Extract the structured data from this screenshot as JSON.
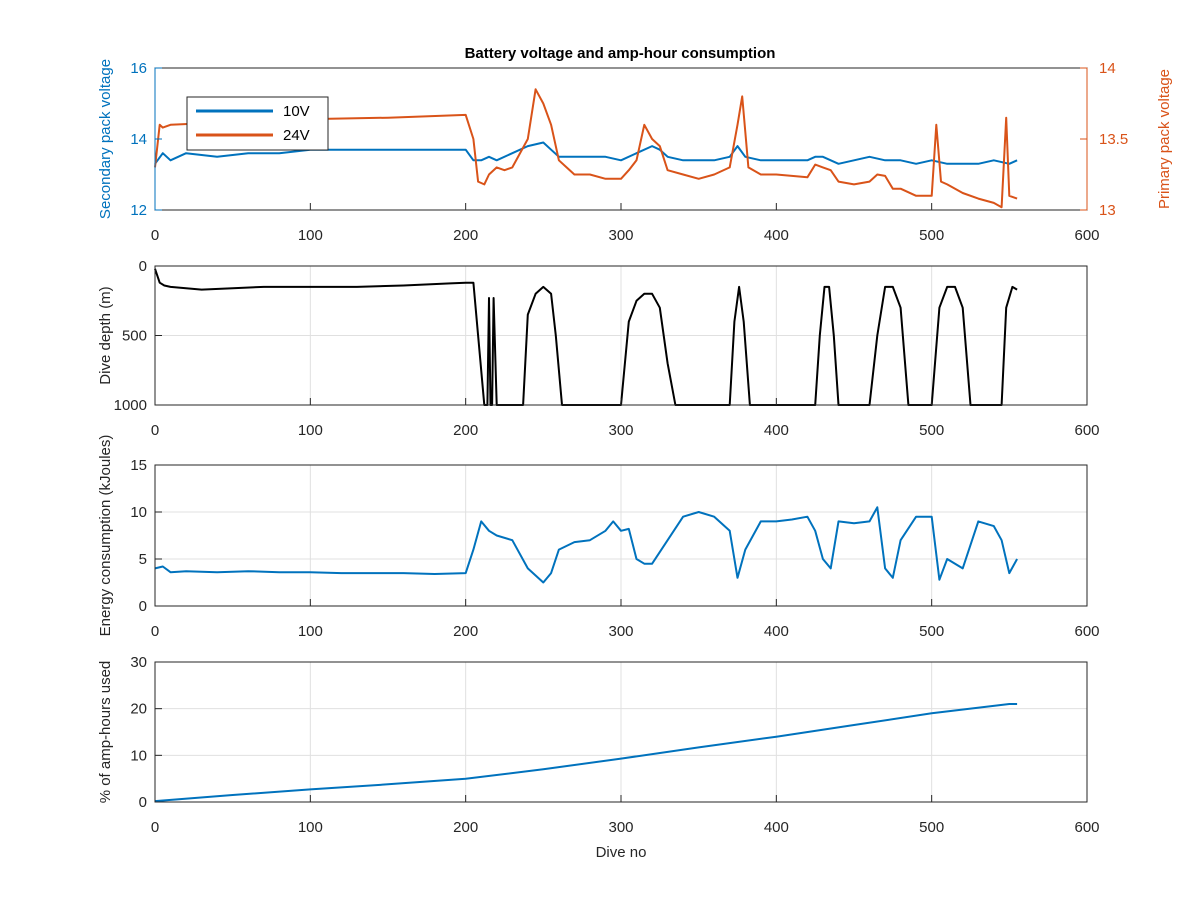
{
  "figure_title": "Battery voltage and amp-hour consumption",
  "colors": {
    "blue": "#0072bd",
    "orange": "#d95319",
    "black": "#000000",
    "grid": "#e0e0e0"
  },
  "chart_data": [
    {
      "type": "line",
      "title": "Battery voltage and amp-hour consumption",
      "xlabel": "",
      "xlim": [
        0,
        600
      ],
      "x_ticks": [
        "0",
        "100",
        "200",
        "300",
        "400",
        "500",
        "600"
      ],
      "ylabel_left": "Secondary pack voltage",
      "ylim_left": [
        12,
        16
      ],
      "y_ticks_left": [
        "12",
        "14",
        "16"
      ],
      "ylabel_right": "Primary pack voltage",
      "ylim_right": [
        13,
        14
      ],
      "y_ticks_right": [
        "13",
        "13.5",
        "14"
      ],
      "grid": false,
      "legend": {
        "placement": "top-left",
        "entries": [
          "10V",
          "24V"
        ]
      },
      "series": [
        {
          "name": "10V",
          "axis": "left",
          "color": "#0072bd",
          "x": [
            0,
            5,
            10,
            20,
            40,
            60,
            80,
            100,
            120,
            140,
            160,
            180,
            200,
            205,
            210,
            215,
            220,
            230,
            240,
            250,
            255,
            260,
            270,
            280,
            290,
            300,
            310,
            320,
            325,
            330,
            340,
            350,
            360,
            370,
            375,
            380,
            390,
            400,
            410,
            420,
            425,
            430,
            440,
            450,
            460,
            470,
            480,
            490,
            500,
            510,
            520,
            530,
            540,
            550,
            555
          ],
          "y": [
            13.3,
            13.6,
            13.4,
            13.6,
            13.5,
            13.6,
            13.6,
            13.7,
            13.7,
            13.7,
            13.7,
            13.7,
            13.7,
            13.4,
            13.4,
            13.5,
            13.4,
            13.6,
            13.8,
            13.9,
            13.7,
            13.5,
            13.5,
            13.5,
            13.5,
            13.4,
            13.6,
            13.8,
            13.7,
            13.5,
            13.4,
            13.4,
            13.4,
            13.5,
            13.8,
            13.5,
            13.4,
            13.4,
            13.4,
            13.4,
            13.5,
            13.5,
            13.3,
            13.4,
            13.5,
            13.4,
            13.4,
            13.3,
            13.4,
            13.3,
            13.3,
            13.3,
            13.4,
            13.3,
            13.4
          ]
        },
        {
          "name": "24V",
          "axis": "right",
          "color": "#d95319",
          "x": [
            0,
            3,
            5,
            10,
            50,
            60,
            100,
            150,
            200,
            205,
            208,
            212,
            215,
            220,
            225,
            230,
            240,
            245,
            250,
            255,
            260,
            265,
            270,
            280,
            290,
            300,
            305,
            310,
            315,
            320,
            325,
            330,
            340,
            350,
            360,
            370,
            375,
            378,
            382,
            390,
            400,
            410,
            420,
            425,
            430,
            435,
            440,
            450,
            460,
            465,
            470,
            475,
            480,
            490,
            500,
            503,
            506,
            510,
            520,
            530,
            540,
            545,
            548,
            550,
            555
          ],
          "y": [
            13.3,
            13.6,
            13.58,
            13.6,
            13.62,
            13.64,
            13.64,
            13.65,
            13.67,
            13.5,
            13.2,
            13.18,
            13.25,
            13.3,
            13.28,
            13.3,
            13.5,
            13.85,
            13.75,
            13.6,
            13.35,
            13.3,
            13.25,
            13.25,
            13.22,
            13.22,
            13.28,
            13.35,
            13.6,
            13.5,
            13.45,
            13.28,
            13.25,
            13.22,
            13.25,
            13.3,
            13.6,
            13.8,
            13.3,
            13.25,
            13.25,
            13.24,
            13.23,
            13.32,
            13.3,
            13.28,
            13.2,
            13.18,
            13.2,
            13.25,
            13.24,
            13.15,
            13.15,
            13.1,
            13.1,
            13.6,
            13.2,
            13.18,
            13.12,
            13.08,
            13.05,
            13.02,
            13.65,
            13.1,
            13.08
          ]
        }
      ]
    },
    {
      "type": "line",
      "xlabel": "",
      "xlim": [
        0,
        600
      ],
      "x_ticks": [
        "0",
        "100",
        "200",
        "300",
        "400",
        "500",
        "600"
      ],
      "ylabel": "Dive depth (m)",
      "ylim": [
        0,
        1000
      ],
      "y_reversed": true,
      "y_ticks": [
        "0",
        "500",
        "1000"
      ],
      "grid": true,
      "series": [
        {
          "color": "#000000",
          "x": [
            0,
            3,
            6,
            10,
            30,
            50,
            70,
            100,
            130,
            160,
            190,
            200,
            205,
            208,
            212,
            214,
            215,
            216,
            217,
            218,
            220,
            230,
            237,
            240,
            245,
            250,
            255,
            258,
            262,
            300,
            305,
            310,
            315,
            320,
            325,
            330,
            335,
            340,
            370,
            373,
            376,
            379,
            383,
            400,
            425,
            428,
            431,
            434,
            437,
            440,
            445,
            450,
            460,
            465,
            470,
            475,
            480,
            485,
            490,
            500,
            505,
            510,
            515,
            520,
            525,
            540,
            545,
            548,
            552,
            555
          ],
          "y": [
            20,
            120,
            140,
            150,
            170,
            160,
            150,
            150,
            150,
            140,
            125,
            120,
            120,
            500,
            1000,
            1000,
            230,
            1000,
            1000,
            230,
            1000,
            1000,
            1000,
            350,
            200,
            150,
            200,
            500,
            1000,
            1000,
            400,
            250,
            200,
            200,
            300,
            700,
            1000,
            1000,
            1000,
            400,
            150,
            400,
            1000,
            1000,
            1000,
            500,
            150,
            150,
            500,
            1000,
            1000,
            1000,
            1000,
            500,
            150,
            150,
            300,
            1000,
            1000,
            1000,
            300,
            150,
            150,
            300,
            1000,
            1000,
            1000,
            300,
            150,
            170
          ]
        }
      ]
    },
    {
      "type": "line",
      "xlabel": "",
      "xlim": [
        0,
        600
      ],
      "x_ticks": [
        "0",
        "100",
        "200",
        "300",
        "400",
        "500",
        "600"
      ],
      "ylabel": "Energy consumption (kJoules)",
      "ylim": [
        0,
        15
      ],
      "y_ticks": [
        "0",
        "5",
        "10",
        "15"
      ],
      "grid": true,
      "series": [
        {
          "color": "#0072bd",
          "x": [
            0,
            5,
            10,
            20,
            40,
            60,
            80,
            100,
            120,
            140,
            160,
            180,
            200,
            205,
            210,
            215,
            220,
            230,
            240,
            250,
            255,
            260,
            270,
            280,
            290,
            295,
            300,
            305,
            310,
            315,
            320,
            330,
            340,
            350,
            360,
            370,
            375,
            380,
            390,
            400,
            410,
            420,
            425,
            430,
            435,
            440,
            450,
            460,
            465,
            470,
            475,
            480,
            490,
            500,
            505,
            510,
            520,
            530,
            540,
            545,
            550,
            555
          ],
          "y": [
            4.0,
            4.2,
            3.6,
            3.7,
            3.6,
            3.7,
            3.6,
            3.6,
            3.5,
            3.5,
            3.5,
            3.4,
            3.5,
            6.0,
            9.0,
            8.0,
            7.5,
            7.0,
            4.0,
            2.5,
            3.5,
            6.0,
            6.8,
            7.0,
            8.0,
            9.0,
            8.0,
            8.2,
            5.0,
            4.5,
            4.5,
            7.0,
            9.5,
            10.0,
            9.5,
            8.0,
            3.0,
            6.0,
            9.0,
            9.0,
            9.2,
            9.5,
            8.0,
            5.0,
            4.0,
            9.0,
            8.8,
            9.0,
            10.5,
            4.0,
            3.0,
            7.0,
            9.5,
            9.5,
            2.8,
            5.0,
            4.0,
            9.0,
            8.5,
            7.0,
            3.5,
            5.0
          ]
        }
      ]
    },
    {
      "type": "line",
      "xlabel": "Dive no",
      "xlim": [
        0,
        600
      ],
      "x_ticks": [
        "0",
        "100",
        "200",
        "300",
        "400",
        "500",
        "600"
      ],
      "ylabel": "% of amp-hours used",
      "ylim": [
        0,
        30
      ],
      "y_ticks": [
        "0",
        "10",
        "20",
        "30"
      ],
      "grid": true,
      "series": [
        {
          "color": "#0072bd",
          "x": [
            0,
            50,
            100,
            150,
            200,
            250,
            300,
            350,
            400,
            450,
            500,
            550,
            555
          ],
          "y": [
            0.2,
            1.5,
            2.7,
            3.8,
            5.0,
            7.0,
            9.3,
            11.7,
            14.0,
            16.5,
            19.0,
            21.0,
            21.0
          ]
        }
      ]
    }
  ]
}
